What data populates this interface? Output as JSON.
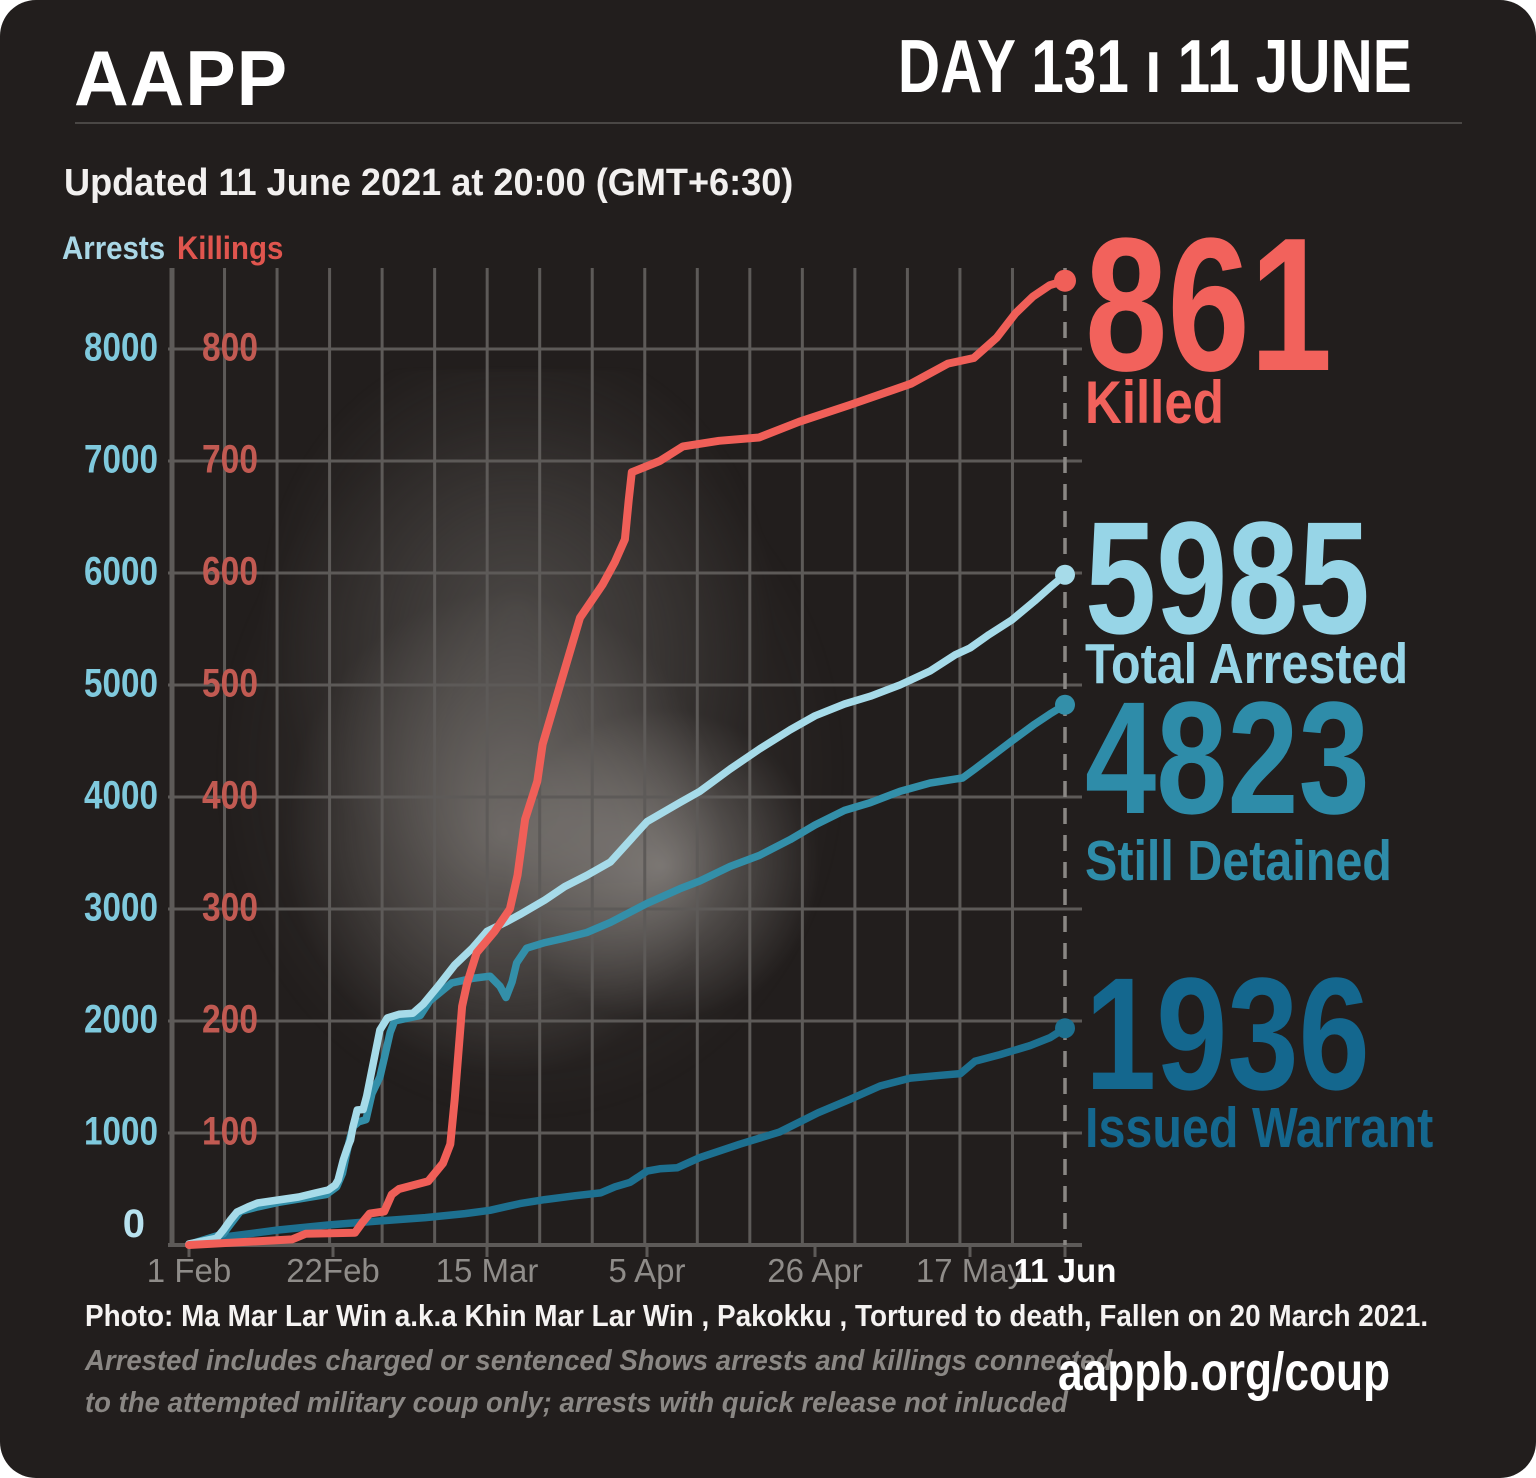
{
  "header": {
    "logo": "AAPP",
    "day_banner": "DAY 131 ı 11 JUNE",
    "updated": "Updated 11 June 2021 at 20:00 (GMT+6:30)"
  },
  "legend": {
    "arrests": "Arrests",
    "arrests_color": "#a9d7e6",
    "killings": "Killings",
    "killings_color": "#e0554e"
  },
  "stats": [
    {
      "value": "861",
      "label": "Killed",
      "color": "#f2625c"
    },
    {
      "value": "5985",
      "label": "Total Arrested",
      "color": "#97d5e7"
    },
    {
      "value": "4823",
      "label": "Still Detained",
      "color": "#2e8ca9"
    },
    {
      "value": "1936",
      "label": "Issued Warrant",
      "color": "#14678e"
    }
  ],
  "footer": {
    "photo_caption": "Photo: Ma Mar Lar Win a.k.a Khin Mar Lar Win  , Pakokku , Tortured to death, Fallen on 20 March 2021.",
    "disclaimer_line1": "Arrested includes charged or sentenced Shows arrests and killings connected",
    "disclaimer_line2": "to the attempted military coup only; arrests with quick release not inlucded",
    "website": "aappb.org/coup"
  },
  "chart_data": {
    "type": "line",
    "x_tick_labels": [
      "1 Feb",
      "22Feb",
      "15 Mar",
      "5 Apr",
      "26 Apr",
      "17 May",
      "11 Jun"
    ],
    "x_tick_days": [
      0,
      21,
      42,
      63,
      84,
      105,
      130
    ],
    "left_axis": {
      "label": "Arrests",
      "min": 0,
      "max": 8000,
      "tick_step": 1000,
      "color": "#7fc9dd",
      "zero_label": "0"
    },
    "right_axis": {
      "label": "Killings",
      "min": 0,
      "max": 800,
      "tick_step": 100,
      "color": "#c15a52"
    },
    "grid": true,
    "series": [
      {
        "name": "Issued Warrant",
        "axis": "left",
        "color": "#1d7090",
        "final_value": 1936,
        "points": [
          [
            0,
            0
          ],
          [
            5.3,
            72
          ],
          [
            13,
            134
          ],
          [
            20.3,
            179
          ],
          [
            25.4,
            205
          ],
          [
            33.6,
            245
          ],
          [
            39,
            280
          ],
          [
            42.4,
            310
          ],
          [
            46.3,
            370
          ],
          [
            49.6,
            405
          ],
          [
            53.6,
            440
          ],
          [
            56.9,
            465
          ],
          [
            58.8,
            520
          ],
          [
            60.8,
            560
          ],
          [
            63,
            660
          ],
          [
            64.6,
            680
          ],
          [
            66.8,
            690
          ],
          [
            69.6,
            780
          ],
          [
            74.6,
            900
          ],
          [
            79.6,
            1010
          ],
          [
            84.4,
            1180
          ],
          [
            88.7,
            1300
          ],
          [
            92.8,
            1420
          ],
          [
            96.9,
            1490
          ],
          [
            101,
            1515
          ],
          [
            103.7,
            1530
          ],
          [
            106.3,
            1640
          ],
          [
            112.9,
            1700
          ],
          [
            120.8,
            1780
          ],
          [
            126,
            1850
          ],
          [
            130,
            1936
          ]
        ]
      },
      {
        "name": "Still Detained",
        "axis": "left",
        "color": "#338fa9",
        "final_value": 4823,
        "points": [
          [
            0,
            5
          ],
          [
            5,
            100
          ],
          [
            6,
            180
          ],
          [
            7.5,
            300
          ],
          [
            10,
            340
          ],
          [
            13,
            380
          ],
          [
            20,
            450
          ],
          [
            21.5,
            520
          ],
          [
            22.3,
            640
          ],
          [
            22.8,
            800
          ],
          [
            23.3,
            950
          ],
          [
            23.8,
            1060
          ],
          [
            24.5,
            1100
          ],
          [
            25.5,
            1120
          ],
          [
            26.3,
            1350
          ],
          [
            27.4,
            1500
          ],
          [
            28.1,
            1700
          ],
          [
            28.8,
            1900
          ],
          [
            29.4,
            2000
          ],
          [
            32.9,
            2050
          ],
          [
            34.2,
            2180
          ],
          [
            37.2,
            2340
          ],
          [
            40,
            2380
          ],
          [
            42.4,
            2400
          ],
          [
            43.7,
            2310
          ],
          [
            44.5,
            2210
          ],
          [
            45.3,
            2350
          ],
          [
            45.9,
            2520
          ],
          [
            47.2,
            2650
          ],
          [
            49.6,
            2700
          ],
          [
            52.2,
            2740
          ],
          [
            55.1,
            2790
          ],
          [
            58.2,
            2880
          ],
          [
            63,
            3050
          ],
          [
            67.1,
            3180
          ],
          [
            69.6,
            3250
          ],
          [
            73.4,
            3380
          ],
          [
            77.1,
            3480
          ],
          [
            80.9,
            3620
          ],
          [
            84,
            3750
          ],
          [
            88,
            3880
          ],
          [
            91.5,
            3950
          ],
          [
            95.5,
            4050
          ],
          [
            99.6,
            4125
          ],
          [
            103,
            4160
          ],
          [
            104,
            4170
          ],
          [
            106.3,
            4250
          ],
          [
            116,
            4500
          ],
          [
            122,
            4650
          ],
          [
            126,
            4740
          ],
          [
            130,
            4823
          ]
        ]
      },
      {
        "name": "Total Arrested",
        "axis": "left",
        "color": "#a6dbe9",
        "final_value": 5985,
        "points": [
          [
            0,
            10
          ],
          [
            4,
            60
          ],
          [
            5,
            134
          ],
          [
            6,
            220
          ],
          [
            7,
            295
          ],
          [
            8.6,
            340
          ],
          [
            10,
            375
          ],
          [
            13,
            402
          ],
          [
            16,
            429
          ],
          [
            18.4,
            464
          ],
          [
            20.3,
            491
          ],
          [
            21.3,
            536
          ],
          [
            21.7,
            580
          ],
          [
            22.4,
            760
          ],
          [
            23,
            875
          ],
          [
            23.4,
            938
          ],
          [
            23.7,
            1050
          ],
          [
            24.1,
            1150
          ],
          [
            24.3,
            1205
          ],
          [
            25.1,
            1210
          ],
          [
            25.6,
            1330
          ],
          [
            26.5,
            1625
          ],
          [
            27.4,
            1920
          ],
          [
            28.4,
            2027
          ],
          [
            30,
            2060
          ],
          [
            31.9,
            2070
          ],
          [
            33.3,
            2150
          ],
          [
            35.2,
            2300
          ],
          [
            37.6,
            2500
          ],
          [
            40,
            2650
          ],
          [
            42,
            2800
          ],
          [
            44.4,
            2880
          ],
          [
            46.3,
            2950
          ],
          [
            49.6,
            3080
          ],
          [
            52.2,
            3200
          ],
          [
            55.1,
            3300
          ],
          [
            58.2,
            3420
          ],
          [
            63,
            3780
          ],
          [
            67.1,
            3950
          ],
          [
            69.6,
            4050
          ],
          [
            73.4,
            4250
          ],
          [
            77.1,
            4430
          ],
          [
            80.9,
            4600
          ],
          [
            84,
            4725
          ],
          [
            88,
            4830
          ],
          [
            91.5,
            4900
          ],
          [
            95.5,
            5000
          ],
          [
            99.6,
            5125
          ],
          [
            103,
            5270
          ],
          [
            105,
            5330
          ],
          [
            110,
            5450
          ],
          [
            116,
            5580
          ],
          [
            122,
            5750
          ],
          [
            126,
            5870
          ],
          [
            130,
            5985
          ]
        ]
      },
      {
        "name": "Killings",
        "axis": "right",
        "color": "#f05f58",
        "final_value": 861,
        "points": [
          [
            0,
            0
          ],
          [
            15,
            5
          ],
          [
            17,
            10
          ],
          [
            24,
            11
          ],
          [
            25,
            20
          ],
          [
            26,
            28
          ],
          [
            28,
            30
          ],
          [
            29,
            45
          ],
          [
            30,
            50
          ],
          [
            34,
            57
          ],
          [
            36,
            73
          ],
          [
            37,
            90
          ],
          [
            37.6,
            130
          ],
          [
            38.6,
            213
          ],
          [
            39.3,
            234
          ],
          [
            40.6,
            261
          ],
          [
            43,
            280
          ],
          [
            45,
            300
          ],
          [
            46,
            330
          ],
          [
            47,
            380
          ],
          [
            48.6,
            414
          ],
          [
            49.3,
            447
          ],
          [
            51.6,
            500
          ],
          [
            54.2,
            560
          ],
          [
            57.2,
            590
          ],
          [
            58.8,
            610
          ],
          [
            60.1,
            630
          ],
          [
            60.6,
            665
          ],
          [
            61,
            690
          ],
          [
            64.6,
            700
          ],
          [
            67.5,
            713
          ],
          [
            72,
            718
          ],
          [
            77,
            721
          ],
          [
            82,
            735
          ],
          [
            88.7,
            750
          ],
          [
            97,
            769
          ],
          [
            102,
            787
          ],
          [
            106,
            792
          ],
          [
            112,
            810
          ],
          [
            117,
            832
          ],
          [
            121.6,
            847
          ],
          [
            126,
            857
          ],
          [
            130,
            861
          ]
        ]
      }
    ]
  }
}
